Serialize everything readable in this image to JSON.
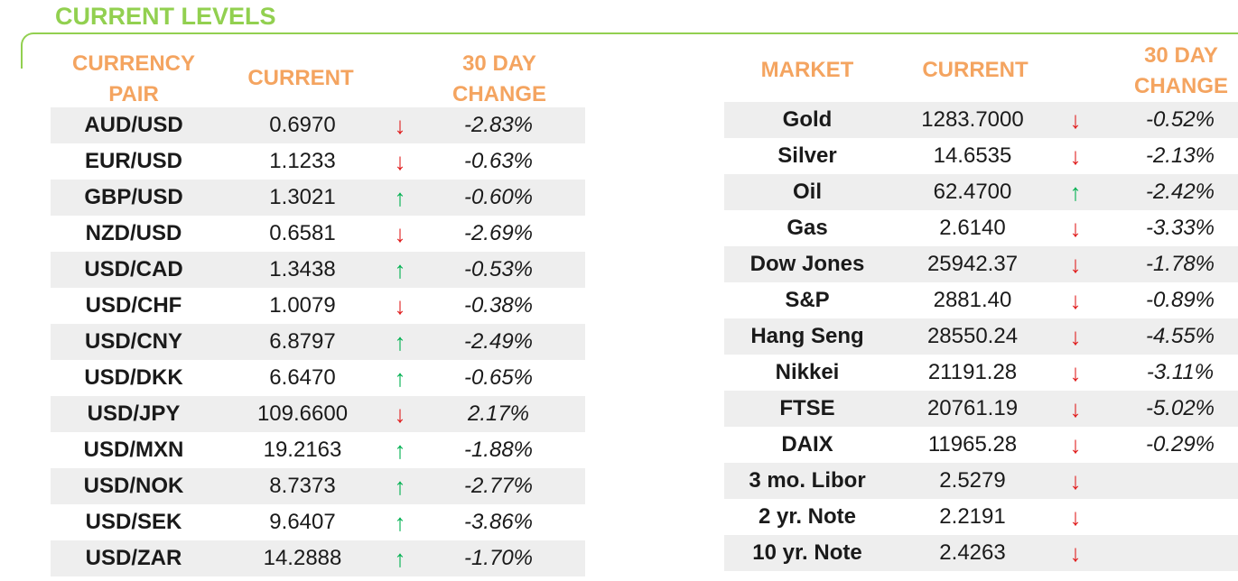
{
  "title": "CURRENT LEVELS",
  "colors": {
    "title": "#92d050",
    "header": "#f4a460",
    "up_arrow": "#00b050",
    "down_arrow": "#e02020",
    "row_shade": "#eeeeee"
  },
  "currency_table": {
    "headers": {
      "pair_line1": "CURRENCY",
      "pair_line2": "PAIR",
      "current": "CURRENT",
      "change_line1": "30 DAY",
      "change_line2": "CHANGE"
    },
    "rows": [
      {
        "name": "AUD/USD",
        "current": "0.6970",
        "dir": "down",
        "arrow": "↓",
        "change": "-2.83%"
      },
      {
        "name": "EUR/USD",
        "current": "1.1233",
        "dir": "down",
        "arrow": "↓",
        "change": "-0.63%"
      },
      {
        "name": "GBP/USD",
        "current": "1.3021",
        "dir": "up",
        "arrow": "↑",
        "change": "-0.60%"
      },
      {
        "name": "NZD/USD",
        "current": "0.6581",
        "dir": "down",
        "arrow": "↓",
        "change": "-2.69%"
      },
      {
        "name": "USD/CAD",
        "current": "1.3438",
        "dir": "up",
        "arrow": "↑",
        "change": "-0.53%"
      },
      {
        "name": "USD/CHF",
        "current": "1.0079",
        "dir": "down",
        "arrow": "↓",
        "change": "-0.38%"
      },
      {
        "name": "USD/CNY",
        "current": "6.8797",
        "dir": "up",
        "arrow": "↑",
        "change": "-2.49%"
      },
      {
        "name": "USD/DKK",
        "current": "6.6470",
        "dir": "up",
        "arrow": "↑",
        "change": "-0.65%"
      },
      {
        "name": "USD/JPY",
        "current": "109.6600",
        "dir": "down",
        "arrow": "↓",
        "change": "2.17%"
      },
      {
        "name": "USD/MXN",
        "current": "19.2163",
        "dir": "up",
        "arrow": "↑",
        "change": "-1.88%"
      },
      {
        "name": "USD/NOK",
        "current": "8.7373",
        "dir": "up",
        "arrow": "↑",
        "change": "-2.77%"
      },
      {
        "name": "USD/SEK",
        "current": "9.6407",
        "dir": "up",
        "arrow": "↑",
        "change": "-3.86%"
      },
      {
        "name": "USD/ZAR",
        "current": "14.2888",
        "dir": "up",
        "arrow": "↑",
        "change": "-1.70%"
      }
    ]
  },
  "market_table": {
    "headers": {
      "market": "MARKET",
      "current": "CURRENT",
      "change_line1": "30 DAY",
      "change_line2": "CHANGE"
    },
    "rows": [
      {
        "name": "Gold",
        "current": "1283.7000",
        "dir": "down",
        "arrow": "↓",
        "change": "-0.52%"
      },
      {
        "name": "Silver",
        "current": "14.6535",
        "dir": "down",
        "arrow": "↓",
        "change": "-2.13%"
      },
      {
        "name": "Oil",
        "current": "62.4700",
        "dir": "up",
        "arrow": "↑",
        "change": "-2.42%"
      },
      {
        "name": "Gas",
        "current": "2.6140",
        "dir": "down",
        "arrow": "↓",
        "change": "-3.33%"
      },
      {
        "name": "Dow Jones",
        "current": "25942.37",
        "dir": "down",
        "arrow": "↓",
        "change": "-1.78%"
      },
      {
        "name": "S&P",
        "current": "2881.40",
        "dir": "down",
        "arrow": "↓",
        "change": "-0.89%"
      },
      {
        "name": "Hang Seng",
        "current": "28550.24",
        "dir": "down",
        "arrow": "↓",
        "change": "-4.55%"
      },
      {
        "name": "Nikkei",
        "current": "21191.28",
        "dir": "down",
        "arrow": "↓",
        "change": "-3.11%"
      },
      {
        "name": "FTSE",
        "current": "20761.19",
        "dir": "down",
        "arrow": "↓",
        "change": "-5.02%"
      },
      {
        "name": "DAIX",
        "current": "11965.28",
        "dir": "down",
        "arrow": "↓",
        "change": "-0.29%"
      },
      {
        "name": "3 mo. Libor",
        "current": "2.5279",
        "dir": "down",
        "arrow": "↓",
        "change": ""
      },
      {
        "name": "2 yr. Note",
        "current": "2.2191",
        "dir": "down",
        "arrow": "↓",
        "change": ""
      },
      {
        "name": "10 yr. Note",
        "current": "2.4263",
        "dir": "down",
        "arrow": "↓",
        "change": ""
      }
    ]
  }
}
